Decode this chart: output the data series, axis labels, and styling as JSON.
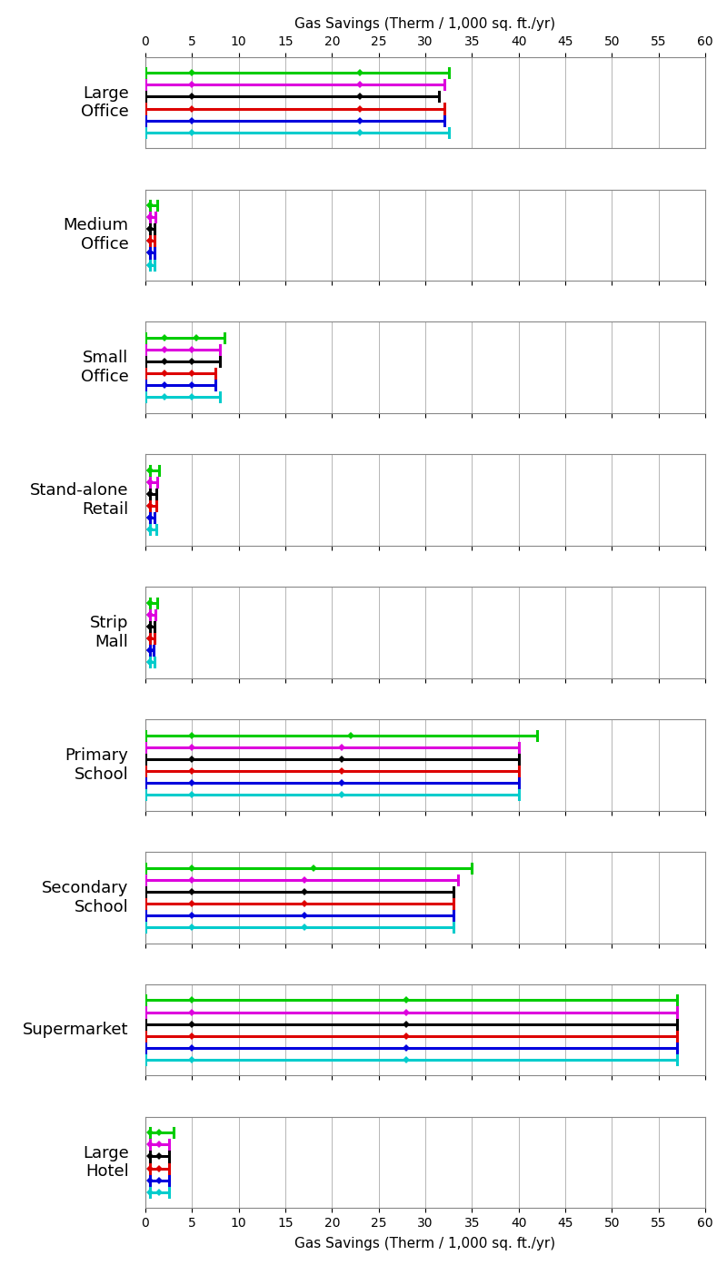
{
  "title_top": "Gas Savings (Therm / 1,000 sq. ft./yr)",
  "title_bottom": "Gas Savings (Therm / 1,000 sq. ft./yr)",
  "xlim": [
    0,
    60
  ],
  "xticks": [
    0,
    5,
    10,
    15,
    20,
    25,
    30,
    35,
    40,
    45,
    50,
    55,
    60
  ],
  "building_types": [
    "Large\nOffice",
    "Medium\nOffice",
    "Small\nOffice",
    "Stand-alone\nRetail",
    "Strip\nMall",
    "Primary\nSchool",
    "Secondary\nSchool",
    "Supermarket",
    "Large\nHotel"
  ],
  "color_keys": [
    "green",
    "magenta",
    "black",
    "red",
    "blue",
    "cyan"
  ],
  "color_map": {
    "green": "#00cc00",
    "magenta": "#dd00dd",
    "black": "#000000",
    "red": "#dd0000",
    "blue": "#0000dd",
    "cyan": "#00cccc"
  },
  "line_data": {
    "Large\nOffice": {
      "green": [
        0.0,
        5.0,
        23.0,
        32.5
      ],
      "magenta": [
        0.0,
        5.0,
        23.0,
        32.0
      ],
      "black": [
        0.0,
        5.0,
        23.0,
        31.5
      ],
      "red": [
        0.0,
        5.0,
        23.0,
        32.0
      ],
      "blue": [
        0.0,
        5.0,
        23.0,
        32.0
      ],
      "cyan": [
        0.0,
        5.0,
        23.0,
        32.5
      ]
    },
    "Medium\nOffice": {
      "green": [
        0.5,
        0.5,
        0.5,
        1.3
      ],
      "magenta": [
        0.5,
        0.5,
        0.5,
        1.1
      ],
      "black": [
        0.5,
        0.5,
        0.5,
        1.0
      ],
      "red": [
        0.5,
        0.5,
        0.5,
        1.0
      ],
      "blue": [
        0.5,
        0.5,
        0.5,
        1.0
      ],
      "cyan": [
        0.5,
        0.5,
        0.5,
        1.0
      ]
    },
    "Small\nOffice": {
      "green": [
        0.0,
        2.0,
        5.5,
        8.5
      ],
      "magenta": [
        0.0,
        2.0,
        5.0,
        8.0
      ],
      "black": [
        0.0,
        2.0,
        5.0,
        8.0
      ],
      "red": [
        0.0,
        2.0,
        5.0,
        7.5
      ],
      "blue": [
        0.0,
        2.0,
        5.0,
        7.5
      ],
      "cyan": [
        0.0,
        2.0,
        5.0,
        8.0
      ]
    },
    "Stand-alone\nRetail": {
      "green": [
        0.5,
        0.5,
        0.5,
        1.5
      ],
      "magenta": [
        0.5,
        0.5,
        0.5,
        1.3
      ],
      "black": [
        0.5,
        0.5,
        0.5,
        1.2
      ],
      "red": [
        0.5,
        0.5,
        0.5,
        1.2
      ],
      "blue": [
        0.5,
        0.5,
        0.5,
        1.0
      ],
      "cyan": [
        0.5,
        0.5,
        0.5,
        1.2
      ]
    },
    "Strip\nMall": {
      "green": [
        0.5,
        0.5,
        0.5,
        1.3
      ],
      "magenta": [
        0.5,
        0.5,
        0.5,
        1.1
      ],
      "black": [
        0.5,
        0.5,
        0.5,
        1.0
      ],
      "red": [
        0.5,
        0.5,
        0.5,
        1.0
      ],
      "blue": [
        0.5,
        0.5,
        0.5,
        0.9
      ],
      "cyan": [
        0.5,
        0.5,
        0.5,
        1.0
      ]
    },
    "Primary\nSchool": {
      "green": [
        0.0,
        5.0,
        22.0,
        42.0
      ],
      "magenta": [
        0.0,
        5.0,
        21.0,
        40.0
      ],
      "black": [
        0.0,
        5.0,
        21.0,
        40.0
      ],
      "red": [
        0.0,
        5.0,
        21.0,
        40.0
      ],
      "blue": [
        0.0,
        5.0,
        21.0,
        40.0
      ],
      "cyan": [
        0.0,
        5.0,
        21.0,
        40.0
      ]
    },
    "Secondary\nSchool": {
      "green": [
        0.0,
        5.0,
        18.0,
        35.0
      ],
      "magenta": [
        0.0,
        5.0,
        17.0,
        33.5
      ],
      "black": [
        0.0,
        5.0,
        17.0,
        33.0
      ],
      "red": [
        0.0,
        5.0,
        17.0,
        33.0
      ],
      "blue": [
        0.0,
        5.0,
        17.0,
        33.0
      ],
      "cyan": [
        0.0,
        5.0,
        17.0,
        33.0
      ]
    },
    "Supermarket": {
      "green": [
        0.0,
        5.0,
        28.0,
        57.0
      ],
      "magenta": [
        0.0,
        5.0,
        28.0,
        57.0
      ],
      "black": [
        0.0,
        5.0,
        28.0,
        57.0
      ],
      "red": [
        0.0,
        5.0,
        28.0,
        57.0
      ],
      "blue": [
        0.0,
        5.0,
        28.0,
        57.0
      ],
      "cyan": [
        0.0,
        5.0,
        28.0,
        57.0
      ]
    },
    "Large\nHotel": {
      "green": [
        0.5,
        0.5,
        1.5,
        3.0
      ],
      "magenta": [
        0.5,
        0.5,
        1.5,
        2.5
      ],
      "black": [
        0.5,
        0.5,
        1.5,
        2.5
      ],
      "red": [
        0.5,
        0.5,
        1.5,
        2.5
      ],
      "blue": [
        0.5,
        0.5,
        1.5,
        2.5
      ],
      "cyan": [
        0.5,
        0.5,
        1.5,
        2.5
      ]
    }
  }
}
